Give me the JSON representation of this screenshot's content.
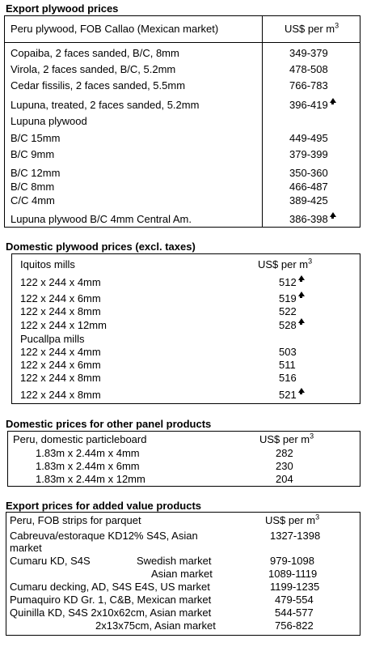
{
  "s1": {
    "title": "Export plywood prices",
    "head_left": "Peru plywood, FOB Callao (Mexican market)",
    "head_right": "US$ per m",
    "head_sup": "3",
    "rows": [
      {
        "name": "Copaiba, 2 faces sanded, B/C, 8mm",
        "price": "349-379",
        "up": false
      },
      {
        "name": "Virola, 2 faces sanded, B/C, 5.2mm",
        "price": "478-508",
        "up": false
      },
      {
        "name": "Cedar fissilis, 2 faces sanded, 5.5mm",
        "price": "766-783",
        "up": false
      },
      {
        "name": "Lupuna, treated, 2 faces sanded, 5.2mm",
        "price": "396-419",
        "up": true
      },
      {
        "name": "Lupuna plywood",
        "price": "",
        "up": false
      },
      {
        "name": "B/C 15mm",
        "price": "449-495",
        "up": false
      },
      {
        "name": "B/C 9mm",
        "price": "379-399",
        "up": false
      },
      {
        "name": "B/C 12mm",
        "price": "350-360",
        "up": false
      },
      {
        "name": "B/C 8mm",
        "price": "466-487",
        "up": false
      },
      {
        "name": "C/C 4mm",
        "price": "389-425",
        "up": false
      },
      {
        "name": "Lupuna plywood B/C 4mm Central Am.",
        "price": "386-398",
        "up": true
      }
    ]
  },
  "s2": {
    "title": "Domestic plywood prices (excl. taxes)",
    "head_left": "Iquitos mills",
    "head_right": "US$ per m",
    "head_sup": "3",
    "rows": [
      {
        "name": "122 x 244 x 4mm",
        "price": "512",
        "up": true
      },
      {
        "name": "122 x 244 x 6mm",
        "price": "519",
        "up": true
      },
      {
        "name": "122 x 244 x 8mm",
        "price": "522",
        "up": false
      },
      {
        "name": "122 x 244 x 12mm",
        "price": "528",
        "up": true
      },
      {
        "name": "Pucallpa mills",
        "price": "",
        "up": false
      },
      {
        "name": "122 x 244 x 4mm",
        "price": "503",
        "up": false
      },
      {
        "name": "122 x 244 x 6mm",
        "price": "511",
        "up": false
      },
      {
        "name": "122 x 244 x 8mm",
        "price": "516",
        "up": false
      },
      {
        "name": "122 x 244 x 8mm",
        "price": "521",
        "up": true
      }
    ]
  },
  "s3": {
    "title": "Domestic prices for other panel products",
    "head_left": "Peru, domestic particleboard",
    "head_right": "US$ per m",
    "head_sup": "3",
    "rows": [
      {
        "name": "1.83m x 2.44m x 4mm",
        "price": "282"
      },
      {
        "name": "1.83m x 2.44m x 6mm",
        "price": "230"
      },
      {
        "name": "1.83m x 2.44m x 12mm",
        "price": "204"
      }
    ]
  },
  "s4": {
    "title": "Export prices for added value products",
    "head_left": "Peru, FOB strips for parquet",
    "head_right": "US$ per m",
    "head_sup": "3",
    "r1_name": "Cabreuva/estoraque KD12% S4S, Asian",
    "r1_name2": "market",
    "r1_price": "1327-1398",
    "r2_name": "Cumaru KD, S4S",
    "r2_m1": "Swedish market",
    "r2_p1": "979-1098",
    "r2_m2": "Asian market",
    "r2_p2": "1089-1119",
    "r3_name": "Cumaru decking, AD, S4S E4S,  US market",
    "r3_price": "1199-1235",
    "r4_name": "Pumaquiro KD Gr. 1, C&B,  Mexican market",
    "r4_price": "479-554",
    "r5_name": "Quinilla KD, S4S 2x10x62cm,  Asian market",
    "r5_price": "544-577",
    "r6_name": "2x13x75cm, Asian market",
    "r6_price": "756-822"
  }
}
